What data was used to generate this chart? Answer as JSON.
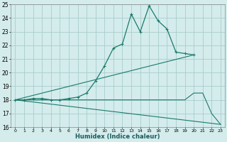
{
  "xlabel": "Humidex (Indice chaleur)",
  "bg_color": "#d4ecec",
  "grid_color": "#a8cccc",
  "line_color": "#1a7a6a",
  "xlim": [
    -0.5,
    23.5
  ],
  "ylim": [
    16,
    25
  ],
  "xticks": [
    0,
    1,
    2,
    3,
    4,
    5,
    6,
    7,
    8,
    9,
    10,
    11,
    12,
    13,
    14,
    15,
    16,
    17,
    18,
    19,
    20,
    21,
    22,
    23
  ],
  "yticks": [
    16,
    17,
    18,
    19,
    20,
    21,
    22,
    23,
    24,
    25
  ],
  "line1_x": [
    0,
    1,
    2,
    3,
    4,
    5,
    6,
    7,
    8,
    9,
    10,
    11,
    12,
    13,
    14,
    15,
    16,
    17,
    18,
    19,
    20
  ],
  "line1_y": [
    18,
    18,
    18.1,
    18.1,
    18,
    18,
    18.1,
    18.2,
    18.5,
    19.4,
    20.5,
    21.8,
    22.1,
    24.3,
    23.0,
    24.9,
    23.8,
    23.2,
    21.5,
    21.4,
    21.3
  ],
  "line2_x": [
    0,
    1,
    2,
    3,
    4,
    5,
    6,
    7,
    8,
    9,
    10,
    11,
    12,
    13,
    14,
    15,
    16,
    17,
    18,
    19,
    20,
    21,
    22,
    23
  ],
  "line2_y": [
    18,
    18,
    18,
    18,
    18,
    18,
    18,
    18,
    18,
    18,
    18,
    18,
    18,
    18,
    18,
    18,
    18,
    18,
    18,
    18,
    18.5,
    18.5,
    17.0,
    16.2
  ],
  "line3_x": [
    0,
    20
  ],
  "line3_y": [
    18,
    21.3
  ],
  "line4_x": [
    0,
    23
  ],
  "line4_y": [
    18,
    16.2
  ]
}
